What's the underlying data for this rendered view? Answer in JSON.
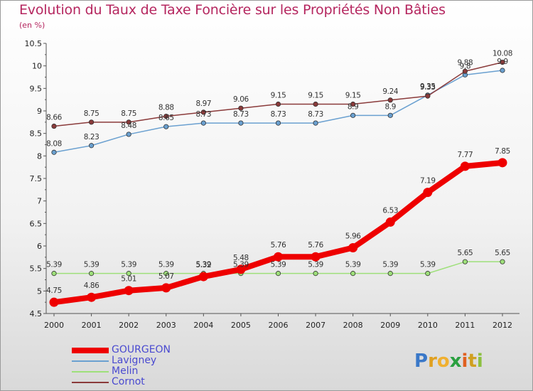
{
  "title": "Evolution du Taux de Taxe Foncière sur les Propriétés Non Bâties",
  "unit_label": "(en %)",
  "brand": {
    "letters": [
      "P",
      "r",
      "o",
      "x",
      "i",
      "t",
      "i"
    ],
    "colors": [
      "#3a78c8",
      "#e0a020",
      "#f0b030",
      "#2aa040",
      "#e06020",
      "#d0a020",
      "#8cc040"
    ]
  },
  "chart_data": {
    "type": "line",
    "title": "Evolution du Taux de Taxe Foncière sur les Propriétés Non Bâties",
    "ylabel": "(en %)",
    "xlabel": "",
    "x": [
      "2000",
      "2001",
      "2002",
      "2003",
      "2004",
      "2005",
      "2006",
      "2007",
      "2008",
      "2009",
      "2010",
      "2011",
      "2012"
    ],
    "ylim": [
      4.5,
      10.5
    ],
    "yticks": [
      "4.5",
      "5",
      "5.5",
      "6",
      "6.5",
      "7",
      "7.5",
      "8",
      "8.5",
      "9",
      "9.5",
      "10",
      "10.5"
    ],
    "grid": false,
    "legend_position": "bottom-left",
    "series": [
      {
        "name": "GOURGEON",
        "color": "#ee0000",
        "values": [
          4.75,
          4.86,
          5.01,
          5.07,
          5.32,
          5.48,
          5.76,
          5.76,
          5.96,
          6.53,
          7.19,
          7.77,
          7.85
        ],
        "labels": [
          "4.75",
          "4.86",
          "5.01",
          "5.07",
          "5.32",
          "5.48",
          "5.76",
          "5.76",
          "5.96",
          "6.53",
          "7.19",
          "7.77",
          "7.85"
        ]
      },
      {
        "name": "Lavigney",
        "color": "#6aa0d0",
        "values": [
          8.08,
          8.23,
          8.48,
          8.65,
          8.73,
          8.73,
          8.73,
          8.73,
          8.9,
          8.9,
          9.35,
          9.8,
          9.9
        ],
        "labels": [
          "8.08",
          "8.23",
          "8.48",
          "8.65",
          "8.73",
          "8.73",
          "8.73",
          "8.73",
          "8.9",
          "8.9",
          "9.35",
          "9.8",
          "9.9"
        ]
      },
      {
        "name": "Melin",
        "color": "#9ee07a",
        "values": [
          5.39,
          5.39,
          5.39,
          5.39,
          5.39,
          5.39,
          5.39,
          5.39,
          5.39,
          5.39,
          5.39,
          5.65,
          5.65
        ],
        "labels": [
          "5.39",
          "5.39",
          "5.39",
          "5.39",
          "5.39",
          "5.39",
          "5.39",
          "5.39",
          "5.39",
          "5.39",
          "5.39",
          "5.65",
          "5.65"
        ]
      },
      {
        "name": "Cornot",
        "color": "#8a3a3a",
        "values": [
          8.66,
          8.75,
          8.75,
          8.88,
          8.97,
          9.06,
          9.15,
          9.15,
          9.15,
          9.24,
          9.33,
          9.88,
          10.08
        ],
        "labels": [
          "8.66",
          "8.75",
          "8.75",
          "8.88",
          "8.97",
          "9.06",
          "9.15",
          "9.15",
          "9.15",
          "9.24",
          "9.33",
          "9.88",
          "10.08"
        ]
      }
    ]
  }
}
